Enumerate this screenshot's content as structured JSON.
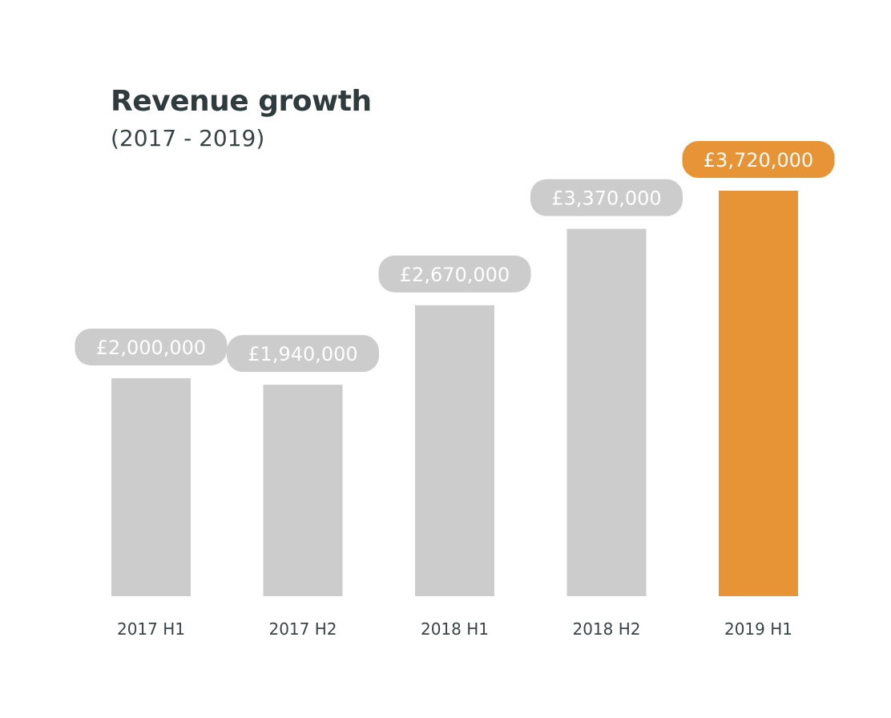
{
  "chart_data": {
    "type": "bar",
    "title": "Revenue growth",
    "subtitle": "(2017 - 2019)",
    "xlabel": "",
    "ylabel": "",
    "categories": [
      "2017 H1",
      "2017 H2",
      "2018 H1",
      "2018 H2",
      "2019 H1"
    ],
    "values": [
      2000000,
      1940000,
      2670000,
      3370000,
      3720000
    ],
    "data_labels": [
      "£2,000,000",
      "£1,940,000",
      "£2,670,000",
      "£3,370,000",
      "£3,720,000"
    ],
    "highlight_index": 4,
    "ylim": [
      0,
      3720000
    ],
    "grid": false,
    "colors": {
      "default": "#cccccc",
      "highlight": "#e69436"
    }
  }
}
